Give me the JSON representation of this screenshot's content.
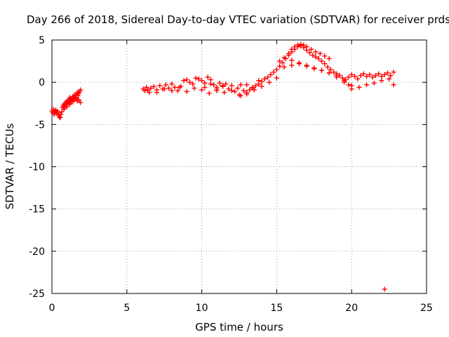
{
  "chart_data": {
    "type": "scatter",
    "title": "Day 266 of 2018, Sidereal Day-to-day VTEC variation (SDTVAR) for receiver prds",
    "xlabel": "GPS time / hours",
    "ylabel": "SDTVAR / TECUs",
    "xlim": [
      0,
      25
    ],
    "ylim": [
      -25,
      5
    ],
    "xticks": [
      0,
      5,
      10,
      15,
      20,
      25
    ],
    "yticks": [
      5,
      0,
      -5,
      -10,
      -15,
      -20,
      -25
    ],
    "grid": true,
    "series": [
      {
        "name": "prds",
        "color": "#ff0000",
        "marker": "plus",
        "x": [
          0.0,
          0.05,
          0.1,
          0.15,
          0.2,
          0.25,
          0.3,
          0.35,
          0.4,
          0.45,
          0.5,
          0.55,
          0.6,
          0.65,
          0.7,
          0.75,
          0.8,
          0.85,
          0.9,
          0.95,
          1.0,
          1.05,
          1.1,
          1.15,
          1.2,
          1.25,
          1.3,
          1.35,
          1.4,
          1.45,
          1.5,
          1.55,
          1.6,
          1.65,
          1.7,
          1.75,
          1.8,
          1.85,
          1.9,
          0.8,
          0.85,
          0.9,
          1.0,
          1.1,
          1.2,
          1.3,
          1.4,
          1.5,
          1.6,
          1.7,
          1.8,
          1.9,
          6.1,
          6.2,
          6.3,
          6.4,
          6.5,
          6.6,
          6.8,
          7.0,
          7.2,
          7.4,
          7.6,
          7.8,
          8.0,
          8.2,
          8.4,
          8.6,
          8.8,
          9.0,
          9.2,
          9.4,
          9.6,
          9.8,
          10.0,
          10.2,
          10.4,
          10.6,
          10.8,
          11.0,
          11.2,
          11.4,
          11.6,
          11.8,
          12.0,
          12.2,
          12.4,
          12.6,
          12.8,
          13.0,
          13.2,
          13.4,
          13.6,
          13.8,
          14.0,
          14.2,
          14.4,
          14.6,
          14.8,
          15.0,
          15.2,
          15.4,
          15.6,
          15.8,
          16.0,
          16.2,
          16.4,
          16.6,
          16.8,
          17.0,
          17.2,
          17.4,
          17.6,
          17.8,
          18.0,
          18.2,
          18.4,
          18.6,
          18.8,
          19.0,
          19.2,
          19.4,
          19.6,
          19.8,
          20.0,
          20.2,
          20.4,
          20.6,
          20.8,
          21.0,
          21.2,
          21.4,
          21.6,
          21.8,
          22.0,
          22.2,
          22.4,
          22.6,
          22.8,
          7.0,
          7.5,
          8.0,
          8.5,
          9.0,
          9.5,
          10.0,
          10.5,
          11.0,
          11.5,
          12.0,
          12.5,
          13.0,
          13.5,
          14.0,
          14.5,
          15.0,
          15.5,
          16.0,
          16.5,
          17.0,
          17.5,
          18.0,
          18.5,
          19.0,
          19.5,
          20.0,
          20.5,
          21.0,
          21.5,
          22.0,
          22.5,
          15.2,
          15.5,
          15.8,
          16.0,
          16.2,
          16.4,
          16.6,
          16.8,
          17.0,
          17.3,
          17.6,
          17.9,
          18.2,
          18.5,
          16.0,
          16.5,
          17.0,
          17.5,
          18.0,
          18.5,
          19.0,
          19.5,
          10.2,
          10.6,
          11.0,
          11.4,
          12.6,
          13.0,
          13.4,
          13.8,
          19.8,
          20.0,
          22.8,
          22.2
        ],
        "y": [
          -3.4,
          -3.6,
          -3.2,
          -3.8,
          -3.5,
          -3.3,
          -3.7,
          -3.4,
          -3.6,
          -3.9,
          -4.1,
          -4.2,
          -3.8,
          -3.5,
          -3.0,
          -2.8,
          -2.6,
          -2.9,
          -2.5,
          -2.3,
          -2.6,
          -2.2,
          -2.4,
          -2.0,
          -1.8,
          -2.1,
          -2.3,
          -1.9,
          -1.7,
          -2.0,
          -1.5,
          -1.8,
          -1.6,
          -1.4,
          -1.2,
          -1.6,
          -1.3,
          -1.1,
          -0.9,
          -3.2,
          -3.0,
          -2.7,
          -2.9,
          -2.5,
          -2.6,
          -2.2,
          -2.3,
          -2.0,
          -1.9,
          -2.2,
          -2.1,
          -2.4,
          -0.8,
          -1.0,
          -0.6,
          -0.9,
          -1.2,
          -0.7,
          -0.5,
          -0.9,
          -0.4,
          -0.8,
          -0.3,
          -0.7,
          -0.2,
          -0.6,
          -1.0,
          -0.5,
          0.2,
          0.3,
          0.0,
          -0.2,
          0.5,
          0.4,
          0.2,
          -0.1,
          0.6,
          0.3,
          -0.3,
          -0.6,
          -0.1,
          -0.5,
          -0.2,
          -0.8,
          -0.4,
          -1.1,
          -0.7,
          -0.3,
          -1.0,
          -1.4,
          -0.9,
          -0.6,
          -0.4,
          -0.2,
          0.1,
          0.4,
          0.6,
          0.9,
          1.2,
          1.5,
          1.9,
          2.3,
          2.8,
          3.2,
          3.6,
          3.9,
          4.2,
          4.3,
          4.1,
          3.8,
          3.5,
          3.2,
          3.0,
          2.8,
          2.5,
          2.2,
          1.8,
          1.5,
          1.2,
          1.0,
          0.8,
          0.5,
          0.3,
          0.6,
          0.9,
          0.7,
          0.4,
          0.8,
          1.0,
          0.7,
          0.9,
          0.6,
          0.8,
          1.0,
          0.7,
          0.9,
          1.1,
          0.8,
          1.2,
          -1.2,
          -0.8,
          -1.0,
          -0.6,
          -1.1,
          -0.7,
          -0.9,
          -1.3,
          -0.8,
          -1.2,
          -1.0,
          -1.5,
          -1.2,
          -0.9,
          -0.5,
          0.0,
          0.5,
          1.8,
          2.6,
          2.3,
          2.0,
          1.7,
          1.4,
          1.1,
          0.8,
          0.0,
          -0.4,
          -0.6,
          -0.3,
          -0.1,
          0.2,
          0.4,
          2.5,
          2.9,
          3.4,
          3.9,
          4.2,
          4.4,
          4.5,
          4.4,
          4.2,
          3.9,
          3.6,
          3.4,
          3.1,
          2.8,
          2.0,
          2.2,
          1.9,
          1.6,
          1.4,
          1.1,
          0.6,
          0.2,
          -0.6,
          -0.2,
          -1.0,
          -0.4,
          -1.6,
          -0.3,
          -0.7,
          0.2,
          -0.3,
          -0.8,
          -0.3,
          -24.5
        ]
      }
    ]
  }
}
